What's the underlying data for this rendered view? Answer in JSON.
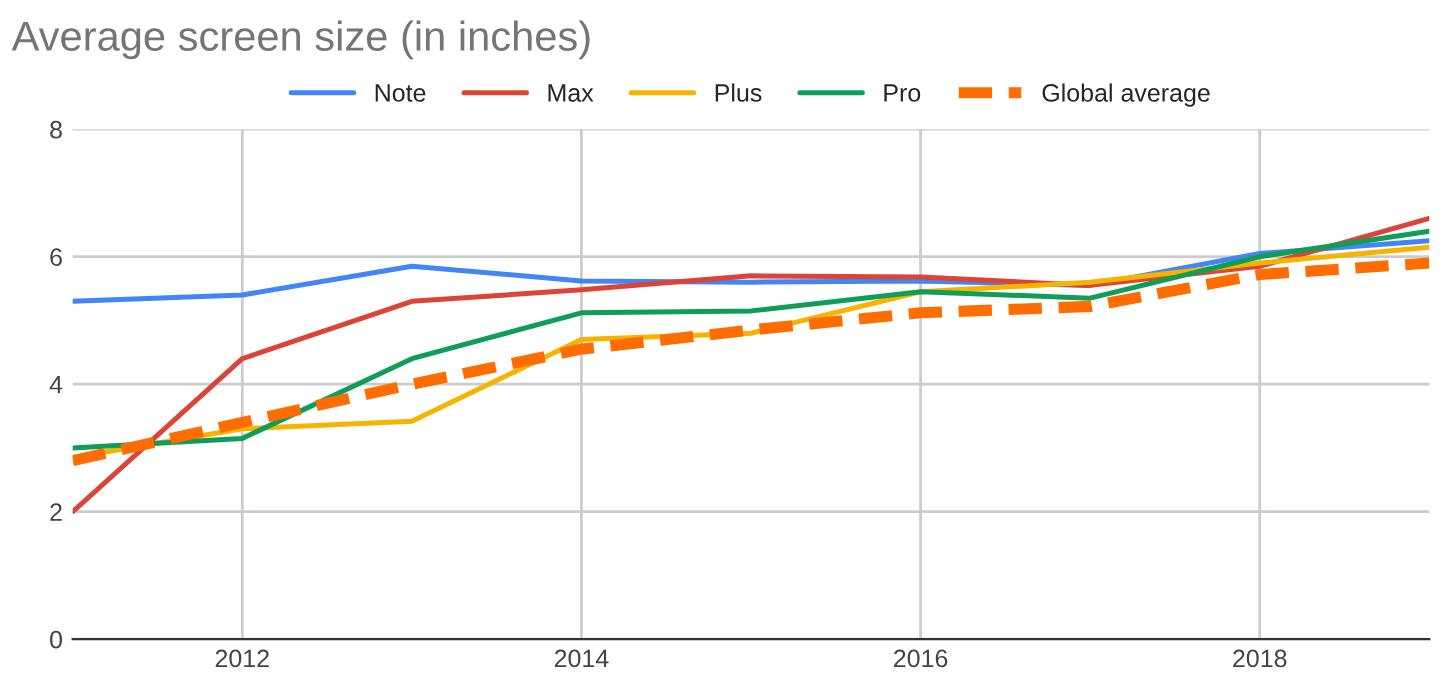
{
  "chart_data": {
    "type": "line",
    "title": "Average screen size (in inches)",
    "x": [
      2011,
      2012,
      2013,
      2014,
      2015,
      2016,
      2017,
      2018,
      2019
    ],
    "series": [
      {
        "name": "Note",
        "color": "#4285f4",
        "values": [
          5.3,
          5.4,
          5.85,
          5.62,
          5.6,
          5.62,
          5.55,
          6.05,
          6.25
        ]
      },
      {
        "name": "Max",
        "color": "#db4437",
        "values": [
          2.0,
          4.4,
          5.3,
          5.48,
          5.7,
          5.68,
          5.55,
          5.85,
          6.6
        ]
      },
      {
        "name": "Plus",
        "color": "#f4b400",
        "values": [
          2.85,
          3.3,
          3.42,
          4.7,
          4.8,
          5.45,
          5.6,
          5.9,
          6.15
        ]
      },
      {
        "name": "Pro",
        "color": "#0f9d58",
        "values": [
          3.0,
          3.15,
          4.4,
          5.12,
          5.15,
          5.45,
          5.35,
          6.0,
          6.4
        ]
      },
      {
        "name": "Global average",
        "color": "#ff6d01",
        "line_style": "dashed",
        "values": [
          2.8,
          3.4,
          4.0,
          4.55,
          4.85,
          5.12,
          5.22,
          5.72,
          5.9
        ]
      }
    ],
    "xlim": [
      2011,
      2019
    ],
    "xticks": [
      2012,
      2014,
      2016,
      2018
    ],
    "ylim": [
      0,
      8
    ],
    "yticks": [
      0,
      2,
      4,
      6,
      8
    ],
    "grid": true,
    "legend": "top",
    "marker": "none"
  }
}
